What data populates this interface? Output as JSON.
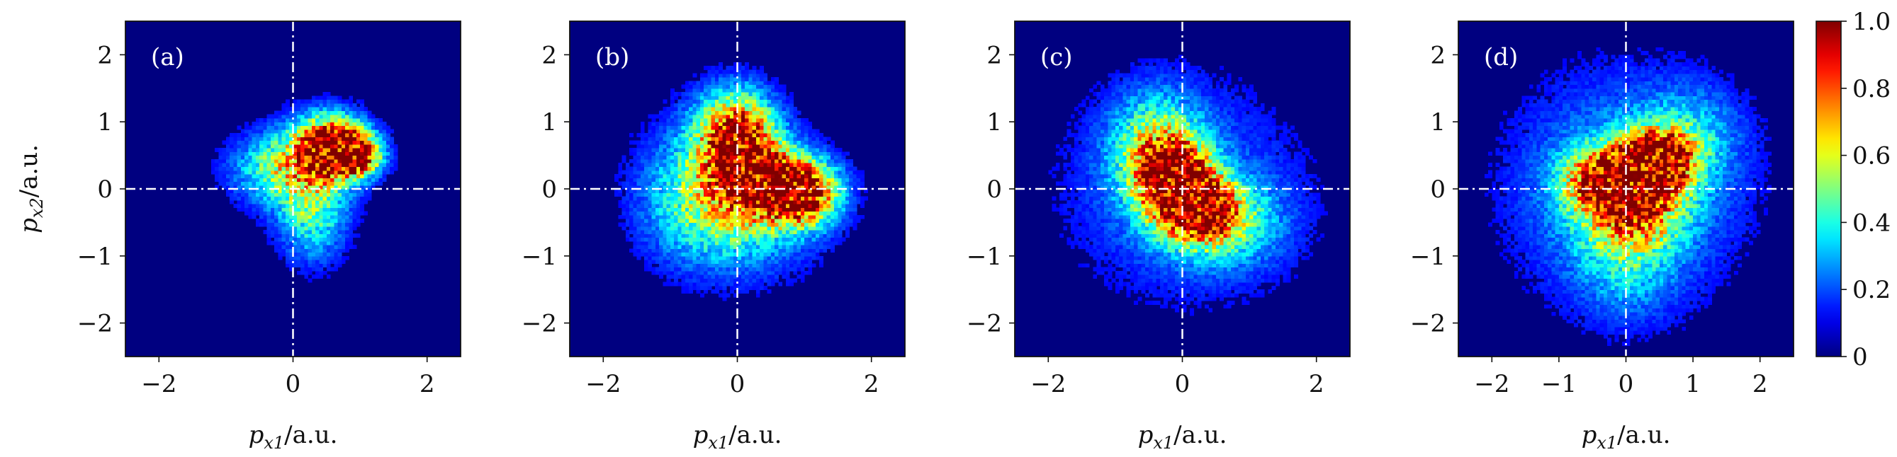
{
  "chart_data": [
    {
      "type": "heatmap",
      "panel_label": "(a)",
      "xlabel": "p_{x1}/a.u.",
      "ylabel": "p_{x2}/a.u.",
      "xlim": [
        -2.5,
        2.5
      ],
      "ylim": [
        -2.5,
        2.5
      ],
      "xticks": [
        "−2",
        "0",
        "2"
      ],
      "yticks": [
        "2",
        "1",
        "0",
        "−1",
        "−2"
      ],
      "blobs": [
        {
          "x": 0.6,
          "y": 0.65,
          "sx": 0.35,
          "sy": 0.3,
          "a": 1.0
        },
        {
          "x": 0.95,
          "y": 0.5,
          "sx": 0.25,
          "sy": 0.2,
          "a": 0.8
        },
        {
          "x": 0.2,
          "y": 0.3,
          "sx": 0.45,
          "sy": 0.45,
          "a": 0.45
        },
        {
          "x": 0.3,
          "y": -0.5,
          "sx": 0.35,
          "sy": 0.45,
          "a": 0.3
        },
        {
          "x": -0.4,
          "y": 0.3,
          "sx": 0.45,
          "sy": 0.35,
          "a": 0.25
        }
      ]
    },
    {
      "type": "heatmap",
      "panel_label": "(b)",
      "xlabel": "p_{x1}/a.u.",
      "ylabel": "",
      "xlim": [
        -2.5,
        2.5
      ],
      "ylim": [
        -2.5,
        2.5
      ],
      "xticks": [
        "−2",
        "0",
        "2"
      ],
      "yticks": [
        "2",
        "1",
        "0",
        "−1",
        "−2"
      ],
      "blobs": [
        {
          "x": 0.0,
          "y": 0.8,
          "sx": 0.4,
          "sy": 0.45,
          "a": 0.9
        },
        {
          "x": 0.5,
          "y": 0.1,
          "sx": 0.5,
          "sy": 0.35,
          "a": 0.85
        },
        {
          "x": 1.0,
          "y": -0.1,
          "sx": 0.35,
          "sy": 0.3,
          "a": 0.7
        },
        {
          "x": 0.0,
          "y": -0.4,
          "sx": 0.8,
          "sy": 0.6,
          "a": 0.35
        },
        {
          "x": -0.6,
          "y": 0.1,
          "sx": 0.6,
          "sy": 0.7,
          "a": 0.25
        }
      ]
    },
    {
      "type": "heatmap",
      "panel_label": "(c)",
      "xlabel": "p_{x1}/a.u.",
      "ylabel": "",
      "xlim": [
        -2.5,
        2.5
      ],
      "ylim": [
        -2.5,
        2.5
      ],
      "xticks": [
        "−2",
        "0",
        "2"
      ],
      "yticks": [
        "2",
        "1",
        "0",
        "−1",
        "−2"
      ],
      "blobs": [
        {
          "x": -0.1,
          "y": 0.1,
          "sx": 0.35,
          "sy": 0.4,
          "a": 0.95
        },
        {
          "x": 0.3,
          "y": -0.3,
          "sx": 0.35,
          "sy": 0.3,
          "a": 0.75
        },
        {
          "x": -0.4,
          "y": 0.6,
          "sx": 0.45,
          "sy": 0.55,
          "a": 0.45
        },
        {
          "x": 0.6,
          "y": -0.5,
          "sx": 0.6,
          "sy": 0.45,
          "a": 0.35
        },
        {
          "x": 0.0,
          "y": 0.0,
          "sx": 1.2,
          "sy": 1.1,
          "a": 0.18
        }
      ]
    },
    {
      "type": "heatmap",
      "panel_label": "(d)",
      "xlabel": "p_{x1}/a.u.",
      "ylabel": "",
      "xlim": [
        -2.5,
        2.5
      ],
      "ylim": [
        -2.5,
        2.5
      ],
      "xticks": [
        "−2",
        "−1",
        "0",
        "1",
        "2"
      ],
      "yticks": [
        "2",
        "1",
        "0",
        "−1",
        "−2"
      ],
      "blobs": [
        {
          "x": 0.45,
          "y": 0.45,
          "sx": 0.35,
          "sy": 0.3,
          "a": 1.0
        },
        {
          "x": -0.3,
          "y": 0.15,
          "sx": 0.4,
          "sy": 0.3,
          "a": 0.7
        },
        {
          "x": 0.1,
          "y": -0.2,
          "sx": 0.5,
          "sy": 0.4,
          "a": 0.6
        },
        {
          "x": 0.0,
          "y": 0.0,
          "sx": 1.1,
          "sy": 1.1,
          "a": 0.3
        },
        {
          "x": 0.0,
          "y": -1.0,
          "sx": 0.5,
          "sy": 0.6,
          "a": 0.2
        },
        {
          "x": 1.0,
          "y": 0.8,
          "sx": 0.5,
          "sy": 0.5,
          "a": 0.2
        }
      ]
    }
  ],
  "colorbar": {
    "ticks": [
      "1.0",
      "0.8",
      "0.6",
      "0.4",
      "0.2",
      "0"
    ],
    "values": [
      1.0,
      0.8,
      0.6,
      0.4,
      0.2,
      0.0
    ],
    "colormap": "jet"
  }
}
